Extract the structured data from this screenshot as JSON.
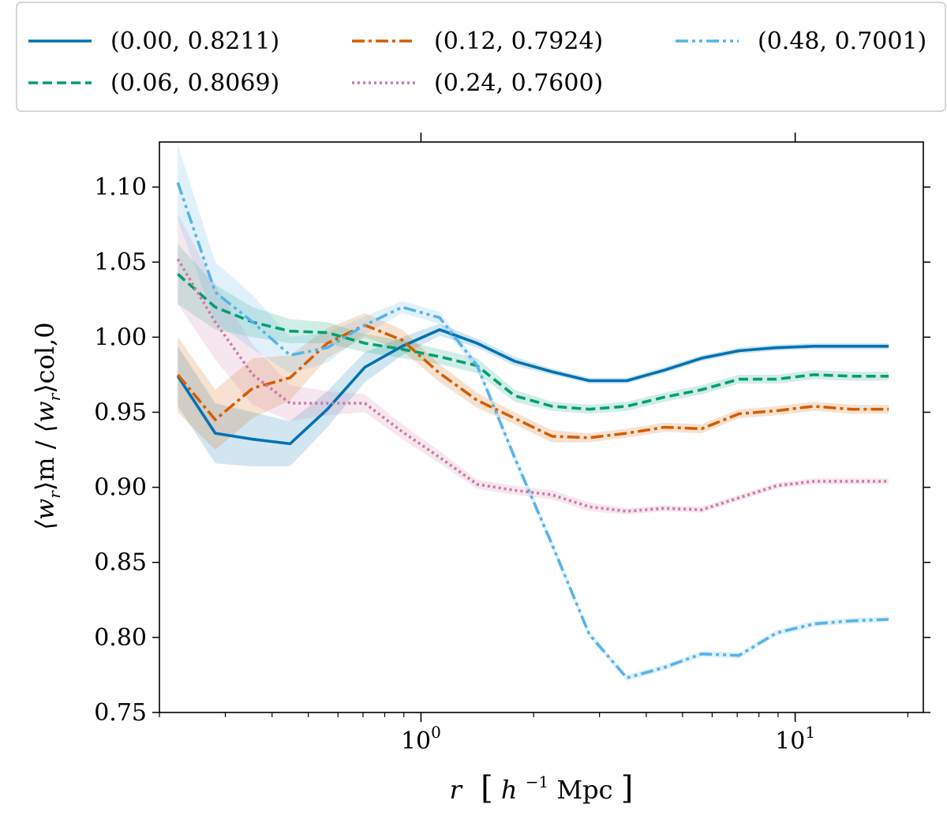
{
  "chart_data": {
    "type": "line",
    "xscale": "log",
    "xlim": [
      0.2,
      22
    ],
    "ylim": [
      0.75,
      1.13
    ],
    "xlabel": "r  [h^-1 Mpc]",
    "xlabel_parts": {
      "var": "r",
      "unit_open": "[",
      "unit_h": "h",
      "unit_exp": "−1",
      "unit_mpc": "Mpc",
      "unit_close": "]"
    },
    "ylabel": "⟨w_r⟩_m / ⟨w_r⟩_col,0",
    "ylabel_parts": {
      "w1": "⟨w",
      "r1": "r",
      "m": "⟩m",
      "slash": " / ",
      "w2": "⟨w",
      "r2": "r",
      "col": "⟩col,0"
    },
    "yticks": [
      "0.75",
      "0.80",
      "0.85",
      "0.90",
      "0.95",
      "1.00",
      "1.05",
      "1.10"
    ],
    "ytick_values": [
      0.75,
      0.8,
      0.85,
      0.9,
      0.95,
      1.0,
      1.05,
      1.1
    ],
    "xticks_major": [
      {
        "value": 1,
        "base": "10",
        "exp": "0"
      },
      {
        "value": 10,
        "base": "10",
        "exp": "1"
      }
    ],
    "xticks_minor": [
      0.2,
      0.3,
      0.4,
      0.5,
      0.6,
      0.7,
      0.8,
      0.9,
      2,
      3,
      4,
      5,
      6,
      7,
      8,
      9,
      20
    ],
    "x": [
      0.224,
      0.282,
      0.355,
      0.447,
      0.562,
      0.708,
      0.891,
      1.122,
      1.413,
      1.778,
      2.239,
      2.818,
      3.548,
      4.467,
      5.623,
      7.079,
      8.913,
      11.22,
      14.13,
      17.78
    ],
    "legend": {
      "position": "top",
      "ncols": 3
    },
    "series": [
      {
        "name": "(0.00,  0.8211)",
        "color": "#0072b2",
        "dash": "solid",
        "values": [
          0.974,
          0.936,
          0.932,
          0.929,
          0.952,
          0.98,
          0.994,
          1.005,
          0.996,
          0.984,
          0.977,
          0.971,
          0.971,
          0.978,
          0.986,
          0.991,
          0.993,
          0.994,
          0.994,
          0.994
        ],
        "err": [
          0.02,
          0.02,
          0.018,
          0.015,
          0.012,
          0.01,
          0.006,
          0.004,
          0.003,
          0.003,
          0.002,
          0.002,
          0.002,
          0.002,
          0.002,
          0.002,
          0.002,
          0.002,
          0.002,
          0.002
        ]
      },
      {
        "name": "(0.06,  0.8069)",
        "color": "#009e73",
        "dash": "dashed",
        "values": [
          1.042,
          1.02,
          1.01,
          1.004,
          1.003,
          0.996,
          0.992,
          0.987,
          0.981,
          0.961,
          0.954,
          0.952,
          0.954,
          0.96,
          0.965,
          0.972,
          0.972,
          0.975,
          0.974,
          0.974
        ],
        "err": [
          0.02,
          0.015,
          0.01,
          0.008,
          0.007,
          0.006,
          0.006,
          0.005,
          0.005,
          0.004,
          0.003,
          0.003,
          0.003,
          0.003,
          0.003,
          0.003,
          0.003,
          0.003,
          0.003,
          0.003
        ]
      },
      {
        "name": "(0.12,  0.7924)",
        "color": "#d55e00",
        "dash": "dashdot",
        "values": [
          0.975,
          0.945,
          0.966,
          0.973,
          0.996,
          1.008,
          0.998,
          0.976,
          0.958,
          0.946,
          0.934,
          0.933,
          0.936,
          0.94,
          0.939,
          0.949,
          0.951,
          0.954,
          0.952,
          0.952
        ],
        "err": [
          0.025,
          0.02,
          0.02,
          0.015,
          0.01,
          0.008,
          0.007,
          0.006,
          0.005,
          0.004,
          0.004,
          0.003,
          0.003,
          0.003,
          0.003,
          0.003,
          0.003,
          0.003,
          0.003,
          0.003
        ]
      },
      {
        "name": "(0.24,  0.7600)",
        "color": "#cc79a7",
        "dash": "dotted",
        "values": [
          1.052,
          1.01,
          0.975,
          0.956,
          0.956,
          0.956,
          0.937,
          0.92,
          0.902,
          0.898,
          0.895,
          0.887,
          0.884,
          0.886,
          0.885,
          0.893,
          0.901,
          0.904,
          0.904,
          0.904
        ],
        "err": [
          0.03,
          0.025,
          0.02,
          0.012,
          0.008,
          0.006,
          0.005,
          0.004,
          0.003,
          0.003,
          0.003,
          0.003,
          0.002,
          0.002,
          0.002,
          0.002,
          0.002,
          0.002,
          0.002,
          0.002
        ]
      },
      {
        "name": "(0.48,  0.7001)",
        "color": "#56b4e9",
        "dash": "dashdotdot",
        "values": [
          1.103,
          1.03,
          1.01,
          0.988,
          0.993,
          1.008,
          1.02,
          1.013,
          0.981,
          0.92,
          0.862,
          0.802,
          0.773,
          0.78,
          0.789,
          0.788,
          0.803,
          0.809,
          0.811,
          0.812
        ],
        "err": [
          0.025,
          0.02,
          0.018,
          0.012,
          0.01,
          0.006,
          0.004,
          0.004,
          0.003,
          0.003,
          0.003,
          0.002,
          0.002,
          0.002,
          0.002,
          0.002,
          0.002,
          0.002,
          0.002,
          0.002
        ]
      }
    ]
  }
}
